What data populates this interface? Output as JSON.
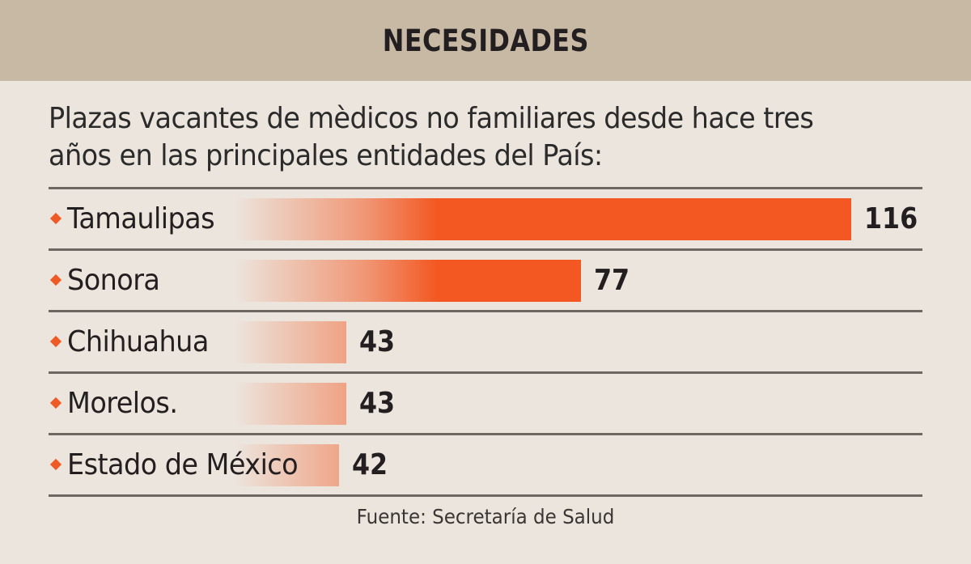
{
  "header": {
    "title": "NECESIDADES"
  },
  "subtitle": {
    "line1": "Plazas vacantes de mèdicos no familiares desde hace tres",
    "line2": "años en las principales entidades del País:"
  },
  "chart_data": {
    "type": "bar",
    "orientation": "horizontal",
    "title": "NECESIDADES",
    "subtitle": "Plazas vacantes de mèdicos no familiares desde hace tres años en las principales entidades del País:",
    "categories": [
      "Tamaulipas",
      "Sonora",
      "Chihuahua",
      "Morelos.",
      "Estado de México"
    ],
    "values": [
      116,
      77,
      43,
      43,
      42
    ],
    "value_labels": [
      "116",
      "77",
      "43",
      "43",
      "42"
    ],
    "xlim": [
      0,
      116
    ],
    "grid": false,
    "bar_color": "#f35822",
    "source": "Fuente: Secretaría de Salud"
  },
  "colors": {
    "header_bg": "#c8b9a5",
    "page_bg": "#ece5dd",
    "bar": "#f35822",
    "rule": "#6d6761",
    "bullet": "#ef5a24"
  },
  "footer": {
    "source": "Fuente: Secretaría de Salud"
  }
}
